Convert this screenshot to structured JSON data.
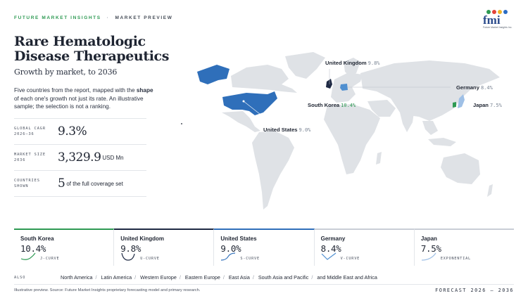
{
  "header": {
    "brand": "FUTURE MARKET INSIGHTS",
    "separator": "·",
    "preview": "MARKET PREVIEW"
  },
  "logo": {
    "word": "fmi",
    "tagline": "Future Market Insights Inc.",
    "dot_colors": [
      "#2e9a53",
      "#e2433a",
      "#f0b429",
      "#2b6cc4"
    ]
  },
  "title": "Rare Hematologic Disease Therapeutics",
  "subtitle": "Growth by market, to 2036",
  "description": {
    "before": "Five countries from the report, mapped with the ",
    "bold": "shape",
    "after": " of each one's growth not just its rate. An illustrative sample; the selection is not a ranking."
  },
  "stats": [
    {
      "label_line1": "GLOBAL CAGR",
      "label_line2": "2026–36",
      "value": "9.3%",
      "unit": ""
    },
    {
      "label_line1": "MARKET SIZE",
      "label_line2": "2036",
      "value": "3,329.9",
      "unit": "USD Mn"
    },
    {
      "label_line1": "COUNTRIES",
      "label_line2": "SHOWN",
      "value": "5",
      "unit": "of the full coverage set"
    }
  ],
  "map_labels": {
    "uk": {
      "name": "United Kingdom",
      "value": "9.8%"
    },
    "germany": {
      "name": "Germany",
      "value": "8.4%"
    },
    "south_korea": {
      "name": "South Korea",
      "value": "10.4%"
    },
    "japan": {
      "name": "Japan",
      "value": "7.5%"
    },
    "us": {
      "name": "United States",
      "value": "9.0%"
    }
  },
  "colors": {
    "land": "#dfe2e6",
    "us_fill": "#2f6fba",
    "germany_fill": "#4f8fd0",
    "uk_fill": "#1f2a44",
    "japan_fill": "#9fc0e6",
    "korea_fill": "#2e9a53",
    "accent_green": "#2e9a53"
  },
  "cards": [
    {
      "country": "South Korea",
      "value": "10.4%",
      "curve": "J-CURVE",
      "icon": "j-curve-icon",
      "color": "#2e9a53",
      "top": "#2e9a53"
    },
    {
      "country": "United Kingdom",
      "value": "9.8%",
      "curve": "U-CURVE",
      "icon": "u-curve-icon",
      "color": "#1f2a44",
      "top": "#1f2a44"
    },
    {
      "country": "United States",
      "value": "9.0%",
      "curve": "S-CURVE",
      "icon": "s-curve-icon",
      "color": "#2f6fba",
      "top": "#2f6fba"
    },
    {
      "country": "Germany",
      "value": "8.4%",
      "curve": "V-CURVE",
      "icon": "v-curve-icon",
      "color": "#4f8fd0",
      "top": "#c9ced6"
    },
    {
      "country": "Japan",
      "value": "7.5%",
      "curve": "EXPONENTIAL",
      "icon": "exponential-curve-icon",
      "color": "#9fc0e6",
      "top": "#c9ced6"
    }
  ],
  "also": {
    "label": "ALSO",
    "regions": [
      "North America",
      "Latin America",
      "Western Europe",
      "Eastern Europe",
      "East Asia",
      "South Asia and Pacific",
      "and Middle East and Africa"
    ],
    "separator": "/"
  },
  "footer": {
    "source": "Illustrative preview. Source: Future Market Insights proprietary forecasting model and primary research.",
    "forecast": "FORECAST 2026 – 2036"
  }
}
